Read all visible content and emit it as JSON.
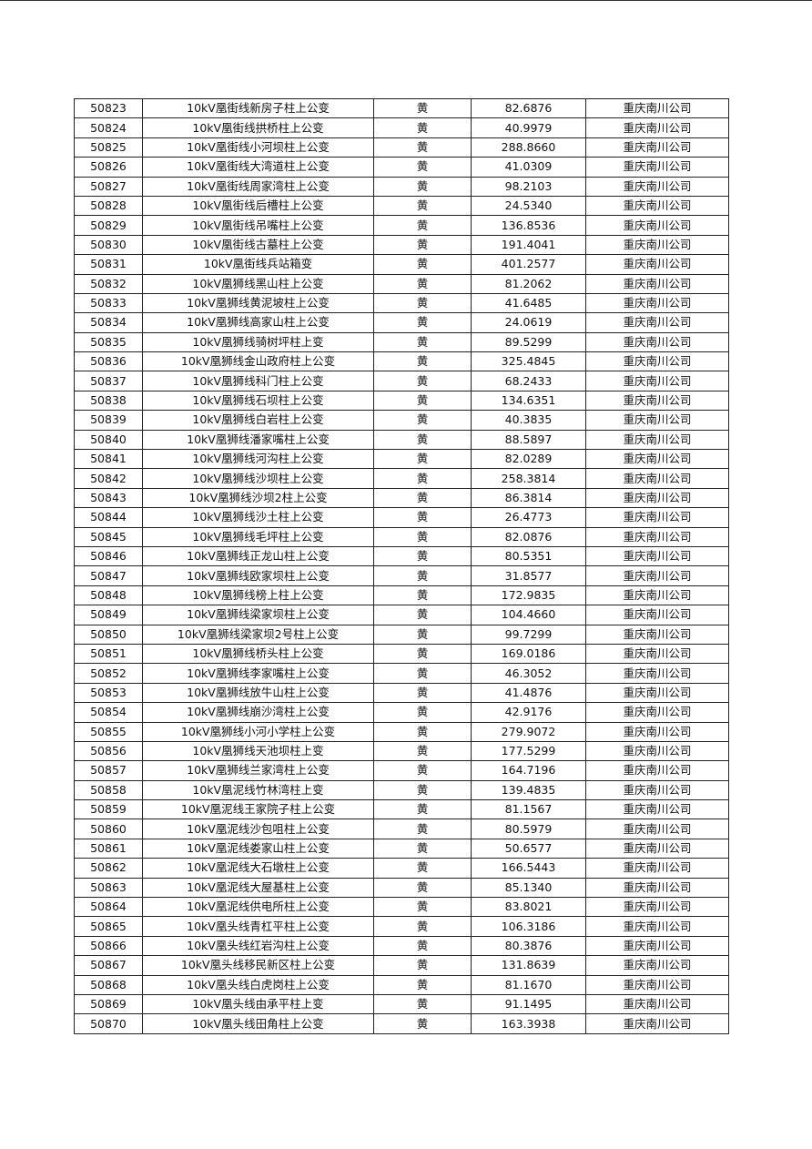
{
  "table": {
    "rows": [
      [
        "50823",
        "10kV凰街线新房子柱上公变",
        "黄",
        "82.6876",
        "重庆南川公司"
      ],
      [
        "50824",
        "10kV凰街线拱桥柱上公变",
        "黄",
        "40.9979",
        "重庆南川公司"
      ],
      [
        "50825",
        "10kV凰街线小河坝柱上公变",
        "黄",
        "288.8660",
        "重庆南川公司"
      ],
      [
        "50826",
        "10kV凰街线大湾道柱上公变",
        "黄",
        "41.0309",
        "重庆南川公司"
      ],
      [
        "50827",
        "10kV凰街线周家湾柱上公变",
        "黄",
        "98.2103",
        "重庆南川公司"
      ],
      [
        "50828",
        "10kV凰街线后槽柱上公变",
        "黄",
        "24.5340",
        "重庆南川公司"
      ],
      [
        "50829",
        "10kV凰街线吊嘴柱上公变",
        "黄",
        "136.8536",
        "重庆南川公司"
      ],
      [
        "50830",
        "10kV凰街线古墓柱上公变",
        "黄",
        "191.4041",
        "重庆南川公司"
      ],
      [
        "50831",
        "10kV凰街线兵站箱变",
        "黄",
        "401.2577",
        "重庆南川公司"
      ],
      [
        "50832",
        "10kV凰狮线黑山柱上公变",
        "黄",
        "81.2062",
        "重庆南川公司"
      ],
      [
        "50833",
        "10kV凰狮线黄泥坡柱上公变",
        "黄",
        "41.6485",
        "重庆南川公司"
      ],
      [
        "50834",
        "10kV凰狮线高家山柱上公变",
        "黄",
        "24.0619",
        "重庆南川公司"
      ],
      [
        "50835",
        "10kV凰狮线骑树坪柱上变",
        "黄",
        "89.5299",
        "重庆南川公司"
      ],
      [
        "50836",
        "10kV凰狮线金山政府柱上公变",
        "黄",
        "325.4845",
        "重庆南川公司"
      ],
      [
        "50837",
        "10kV凰狮线科门柱上公变",
        "黄",
        "68.2433",
        "重庆南川公司"
      ],
      [
        "50838",
        "10kV凰狮线石坝柱上公变",
        "黄",
        "134.6351",
        "重庆南川公司"
      ],
      [
        "50839",
        "10kV凰狮线白岩柱上公变",
        "黄",
        "40.3835",
        "重庆南川公司"
      ],
      [
        "50840",
        "10kV凰狮线潘家嘴柱上公变",
        "黄",
        "88.5897",
        "重庆南川公司"
      ],
      [
        "50841",
        "10kV凰狮线河沟柱上公变",
        "黄",
        "82.0289",
        "重庆南川公司"
      ],
      [
        "50842",
        "10kV凰狮线沙坝柱上公变",
        "黄",
        "258.3814",
        "重庆南川公司"
      ],
      [
        "50843",
        "10kV凰狮线沙坝2柱上公变",
        "黄",
        "86.3814",
        "重庆南川公司"
      ],
      [
        "50844",
        "10kV凰狮线沙土柱上公变",
        "黄",
        "26.4773",
        "重庆南川公司"
      ],
      [
        "50845",
        "10kV凰狮线毛坪柱上公变",
        "黄",
        "82.0876",
        "重庆南川公司"
      ],
      [
        "50846",
        "10kV凰狮线正龙山柱上公变",
        "黄",
        "80.5351",
        "重庆南川公司"
      ],
      [
        "50847",
        "10kV凰狮线欧家坝柱上公变",
        "黄",
        "31.8577",
        "重庆南川公司"
      ],
      [
        "50848",
        "10kV凰狮线榜上柱上公变",
        "黄",
        "172.9835",
        "重庆南川公司"
      ],
      [
        "50849",
        "10kV凰狮线梁家坝柱上公变",
        "黄",
        "104.4660",
        "重庆南川公司"
      ],
      [
        "50850",
        "10kV凰狮线梁家坝2号柱上公变",
        "黄",
        "99.7299",
        "重庆南川公司"
      ],
      [
        "50851",
        "10kV凰狮线桥头柱上公变",
        "黄",
        "169.0186",
        "重庆南川公司"
      ],
      [
        "50852",
        "10kV凰狮线李家嘴柱上公变",
        "黄",
        "46.3052",
        "重庆南川公司"
      ],
      [
        "50853",
        "10kV凰狮线放牛山柱上公变",
        "黄",
        "41.4876",
        "重庆南川公司"
      ],
      [
        "50854",
        "10kV凰狮线崩沙湾柱上公变",
        "黄",
        "42.9176",
        "重庆南川公司"
      ],
      [
        "50855",
        "10kV凰狮线小河小学柱上公变",
        "黄",
        "279.9072",
        "重庆南川公司"
      ],
      [
        "50856",
        "10kV凰狮线天池坝柱上变",
        "黄",
        "177.5299",
        "重庆南川公司"
      ],
      [
        "50857",
        "10kV凰狮线兰家湾柱上公变",
        "黄",
        "164.7196",
        "重庆南川公司"
      ],
      [
        "50858",
        "10kV凰泥线竹林湾柱上变",
        "黄",
        "139.4835",
        "重庆南川公司"
      ],
      [
        "50859",
        "10kV凰泥线王家院子柱上公变",
        "黄",
        "81.1567",
        "重庆南川公司"
      ],
      [
        "50860",
        "10kV凰泥线沙包咀柱上公变",
        "黄",
        "80.5979",
        "重庆南川公司"
      ],
      [
        "50861",
        "10kV凰泥线娄家山柱上公变",
        "黄",
        "50.6577",
        "重庆南川公司"
      ],
      [
        "50862",
        "10kV凰泥线大石墩柱上公变",
        "黄",
        "166.5443",
        "重庆南川公司"
      ],
      [
        "50863",
        "10kV凰泥线大屋基柱上公变",
        "黄",
        "85.1340",
        "重庆南川公司"
      ],
      [
        "50864",
        "10kV凰泥线供电所柱上公变",
        "黄",
        "83.8021",
        "重庆南川公司"
      ],
      [
        "50865",
        "10kV凰头线青杠平柱上公变",
        "黄",
        "106.3186",
        "重庆南川公司"
      ],
      [
        "50866",
        "10kV凰头线红岩沟柱上公变",
        "黄",
        "80.3876",
        "重庆南川公司"
      ],
      [
        "50867",
        "10kV凰头线移民新区柱上公变",
        "黄",
        "131.8639",
        "重庆南川公司"
      ],
      [
        "50868",
        "10kV凰头线白虎岗柱上公变",
        "黄",
        "81.1670",
        "重庆南川公司"
      ],
      [
        "50869",
        "10kV凰头线由承平柱上变",
        "黄",
        "91.1495",
        "重庆南川公司"
      ],
      [
        "50870",
        "10kV凰头线田角柱上公变",
        "黄",
        "163.3938",
        "重庆南川公司"
      ]
    ]
  }
}
